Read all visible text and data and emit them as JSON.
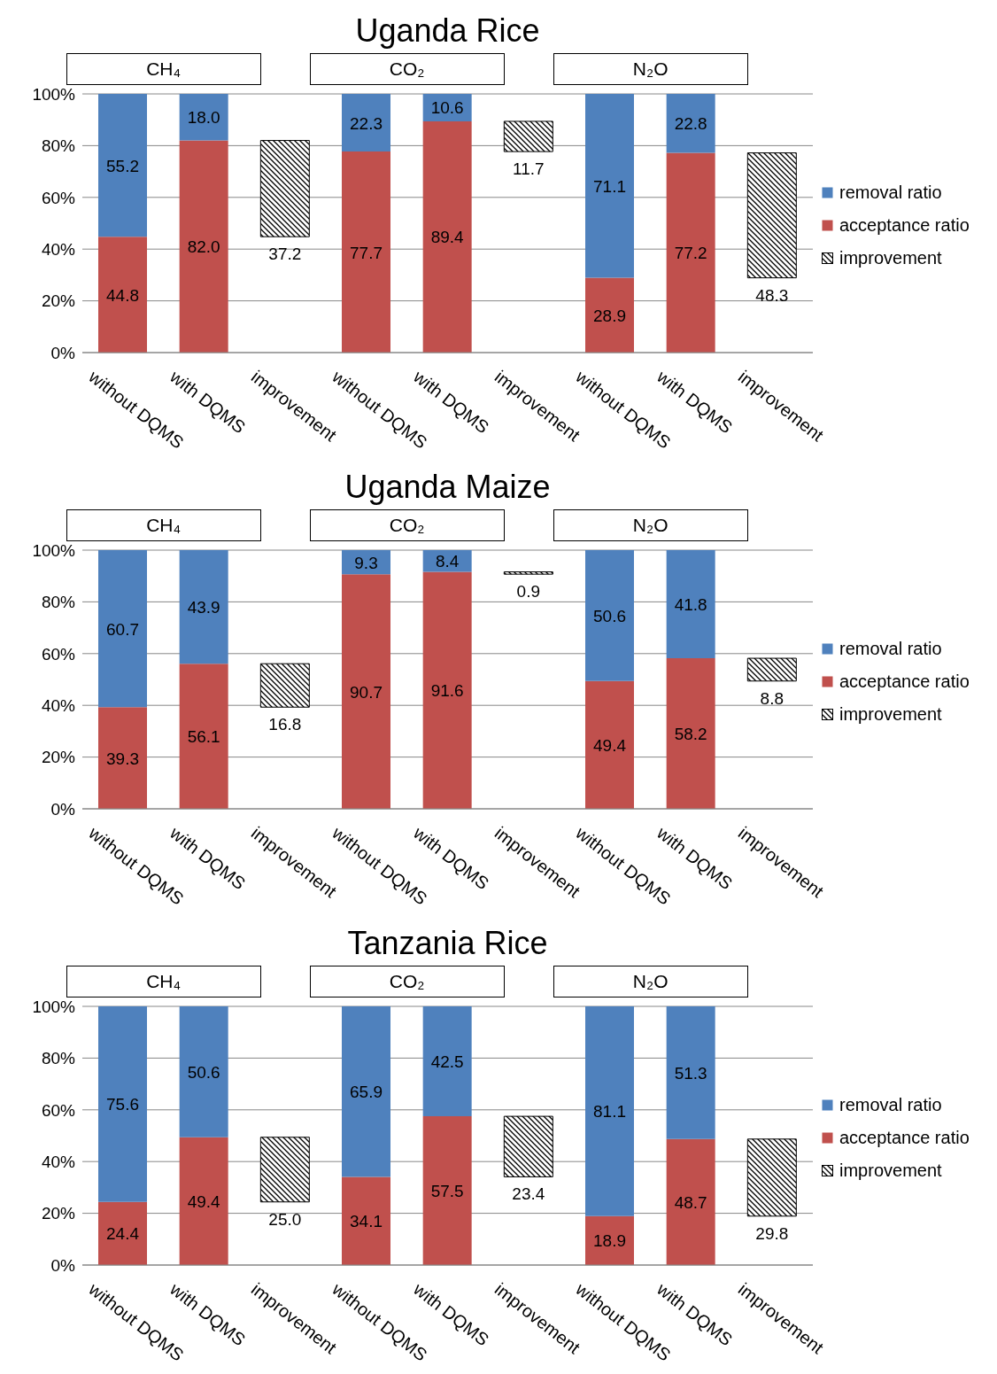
{
  "chart_data": [
    {
      "type": "bar",
      "title": "Uganda Rice",
      "annotations": [
        "CH₄",
        "CO₂",
        "N₂O"
      ],
      "categories": [
        "without DQMS",
        "with DQMS",
        "improvement",
        "without DQMS",
        "with DQMS",
        "improvement",
        "without DQMS",
        "with DQMS",
        "improvement"
      ],
      "stacked": true,
      "series": [
        {
          "name": "acceptance ratio",
          "color": "#c0504d",
          "values": [
            44.8,
            82.0,
            null,
            77.7,
            89.4,
            null,
            28.9,
            77.2,
            null
          ],
          "value_labels": [
            "44.8",
            "82.0",
            null,
            "77.7",
            "89.4",
            null,
            "28.9",
            "77.2",
            null
          ]
        },
        {
          "name": "removal ratio",
          "color": "#4f81bd",
          "values": [
            55.2,
            18.0,
            null,
            22.3,
            10.6,
            null,
            71.1,
            22.8,
            null
          ],
          "value_labels": [
            "55.2",
            "18.0",
            null,
            "22.3",
            "10.6",
            null,
            "71.1",
            "22.8",
            null
          ]
        },
        {
          "name": "improvement",
          "color": "#000000",
          "base": [
            null,
            null,
            44.8,
            null,
            null,
            77.7,
            null,
            null,
            28.9
          ],
          "values": [
            null,
            null,
            37.2,
            null,
            null,
            11.7,
            null,
            null,
            48.3
          ],
          "value_labels": [
            null,
            null,
            "37.2",
            null,
            null,
            "11.7",
            null,
            null,
            "48.3"
          ]
        }
      ],
      "ylim": [
        0,
        100
      ],
      "yticks": [
        {
          "value": 0,
          "label": "0%"
        },
        {
          "value": 20,
          "label": "20%"
        },
        {
          "value": 40,
          "label": "40%"
        },
        {
          "value": 60,
          "label": "60%"
        },
        {
          "value": 80,
          "label": "80%"
        },
        {
          "value": 100,
          "label": "100%"
        }
      ],
      "grid": "y",
      "legend": "right"
    },
    {
      "type": "bar",
      "title": "Uganda Maize",
      "annotations": [
        "CH₄",
        "CO₂",
        "N₂O"
      ],
      "categories": [
        "without DQMS",
        "with DQMS",
        "improvement",
        "without DQMS",
        "with DQMS",
        "improvement",
        "without DQMS",
        "with DQMS",
        "improvement"
      ],
      "stacked": true,
      "series": [
        {
          "name": "acceptance ratio",
          "color": "#c0504d",
          "values": [
            39.3,
            56.1,
            null,
            90.7,
            91.6,
            null,
            49.4,
            58.2,
            null
          ],
          "value_labels": [
            "39.3",
            "56.1",
            null,
            "90.7",
            "91.6",
            null,
            "49.4",
            "58.2",
            null
          ]
        },
        {
          "name": "removal ratio",
          "color": "#4f81bd",
          "values": [
            60.7,
            43.9,
            null,
            9.3,
            8.4,
            null,
            50.6,
            41.8,
            null
          ],
          "value_labels": [
            "60.7",
            "43.9",
            null,
            "9.3",
            "8.4",
            null,
            "50.6",
            "41.8",
            null
          ]
        },
        {
          "name": "improvement",
          "color": "#000000",
          "base": [
            null,
            null,
            39.3,
            null,
            null,
            90.7,
            null,
            null,
            49.4
          ],
          "values": [
            null,
            null,
            16.8,
            null,
            null,
            0.9,
            null,
            null,
            8.8
          ],
          "value_labels": [
            null,
            null,
            "16.8",
            null,
            null,
            "0.9",
            null,
            null,
            "8.8"
          ]
        }
      ],
      "ylim": [
        0,
        100
      ],
      "yticks": [
        {
          "value": 0,
          "label": "0%"
        },
        {
          "value": 20,
          "label": "20%"
        },
        {
          "value": 40,
          "label": "40%"
        },
        {
          "value": 60,
          "label": "60%"
        },
        {
          "value": 80,
          "label": "80%"
        },
        {
          "value": 100,
          "label": "100%"
        }
      ],
      "grid": "y",
      "legend": "right"
    },
    {
      "type": "bar",
      "title": "Tanzania Rice",
      "annotations": [
        "CH₄",
        "CO₂",
        "N₂O"
      ],
      "categories": [
        "without DQMS",
        "with DQMS",
        "improvement",
        "without DQMS",
        "with DQMS",
        "improvement",
        "without DQMS",
        "with DQMS",
        "improvement"
      ],
      "stacked": true,
      "series": [
        {
          "name": "acceptance ratio",
          "color": "#c0504d",
          "values": [
            24.4,
            49.4,
            null,
            34.1,
            57.5,
            null,
            18.9,
            48.7,
            null
          ],
          "value_labels": [
            "24.4",
            "49.4",
            null,
            "34.1",
            "57.5",
            null,
            "18.9",
            "48.7",
            null
          ]
        },
        {
          "name": "removal ratio",
          "color": "#4f81bd",
          "values": [
            75.6,
            50.6,
            null,
            65.9,
            42.5,
            null,
            81.1,
            51.3,
            null
          ],
          "value_labels": [
            "75.6",
            "50.6",
            null,
            "65.9",
            "42.5",
            null,
            "81.1",
            "51.3",
            null
          ]
        },
        {
          "name": "improvement",
          "color": "#000000",
          "base": [
            null,
            null,
            24.4,
            null,
            null,
            34.1,
            null,
            null,
            18.9
          ],
          "values": [
            null,
            null,
            25.0,
            null,
            null,
            23.4,
            null,
            null,
            29.8
          ],
          "value_labels": [
            null,
            null,
            "25.0",
            null,
            null,
            "23.4",
            null,
            null,
            "29.8"
          ]
        }
      ],
      "ylim": [
        0,
        100
      ],
      "yticks": [
        {
          "value": 0,
          "label": "0%"
        },
        {
          "value": 20,
          "label": "20%"
        },
        {
          "value": 40,
          "label": "40%"
        },
        {
          "value": 60,
          "label": "60%"
        },
        {
          "value": 80,
          "label": "80%"
        },
        {
          "value": 100,
          "label": "100%"
        }
      ],
      "grid": "y",
      "legend": "right"
    }
  ]
}
